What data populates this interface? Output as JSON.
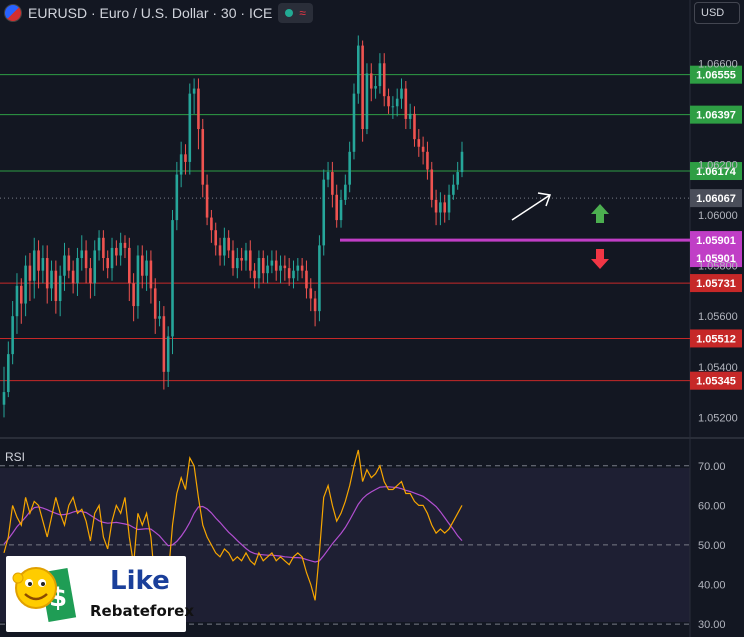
{
  "header": {
    "title": "EURUSD · Euro / U.S. Dollar · 30 · ICE",
    "currency": "USD",
    "status_icon": "green-dot-icon",
    "wave_icon": "≈"
  },
  "rsi_label": "RSI",
  "logo": {
    "line1": "Like",
    "line2": "Rebateforex"
  },
  "colors": {
    "up": "#26a69a",
    "down": "#ef5350",
    "green_level": "#2e7d32",
    "red_level": "#b71c1c",
    "purple": "#c03ec6",
    "rsi": "#f7a600",
    "rsi_ma": "#b24fd1",
    "current": "#4a4e5a"
  },
  "chart_data": [
    {
      "type": "candlestick",
      "title": "EURUSD · Euro / U.S. Dollar · 30 · ICE",
      "ylim": [
        1.0515,
        1.067
      ],
      "y_ticks": [
        "1.06600",
        "1.06200",
        "1.06000",
        "1.05800",
        "1.05600",
        "1.05400",
        "1.05200"
      ],
      "current_price": "1.06067",
      "resistance_levels": [
        "1.06555",
        "1.06397",
        "1.06174"
      ],
      "support_levels": [
        "1.05731",
        "1.05512",
        "1.05345"
      ],
      "pivot_level": "1.05901",
      "pivot_label_2": "1.05901",
      "closes": [
        1.053,
        1.0545,
        1.056,
        1.0572,
        1.0565,
        1.058,
        1.0574,
        1.0586,
        1.0578,
        1.0583,
        1.0571,
        1.0578,
        1.0566,
        1.0576,
        1.0584,
        1.0578,
        1.0573,
        1.0583,
        1.0586,
        1.0579,
        1.0573,
        1.0586,
        1.0591,
        1.0583,
        1.0579,
        1.0587,
        1.0584,
        1.0589,
        1.0587,
        1.0573,
        1.0564,
        1.0584,
        1.0576,
        1.0582,
        1.0571,
        1.0559,
        1.056,
        1.0538,
        1.0552,
        1.0598,
        1.0616,
        1.0624,
        1.0621,
        1.0648,
        1.065,
        1.0634,
        1.0612,
        1.0599,
        1.0594,
        1.0588,
        1.0584,
        1.0591,
        1.0586,
        1.0579,
        1.0583,
        1.0582,
        1.0586,
        1.0578,
        1.0575,
        1.0583,
        1.0577,
        1.058,
        1.0582,
        1.0578,
        1.058,
        1.0579,
        1.0575,
        1.0578,
        1.058,
        1.0578,
        1.0571,
        1.0567,
        1.0562,
        1.0588,
        1.0614,
        1.0617,
        1.0608,
        1.0598,
        1.0606,
        1.0612,
        1.0625,
        1.0648,
        1.0667,
        1.0634,
        1.0656,
        1.065,
        1.0651,
        1.066,
        1.0647,
        1.0643,
        1.0643,
        1.0646,
        1.065,
        1.0638,
        1.064,
        1.063,
        1.0627,
        1.0625,
        1.0618,
        1.0606,
        1.0601,
        1.0605,
        1.0601,
        1.0608,
        1.0612,
        1.0617,
        1.0625
      ],
      "lows": [
        1.052,
        1.0528,
        1.0541,
        1.0553,
        1.0557,
        1.056,
        1.0566,
        1.0567,
        1.0571,
        1.0573,
        1.0565,
        1.0566,
        1.0561,
        1.056,
        1.057,
        1.0575,
        1.0569,
        1.0568,
        1.0578,
        1.0573,
        1.0567,
        1.0568,
        1.0582,
        1.0578,
        1.0575,
        1.0574,
        1.058,
        1.058,
        1.0583,
        1.0566,
        1.0558,
        1.0559,
        1.0571,
        1.057,
        1.0565,
        1.0553,
        1.0556,
        1.0531,
        1.0532,
        1.0545,
        1.0594,
        1.0611,
        1.0616,
        1.0616,
        1.064,
        1.0626,
        1.0607,
        1.0596,
        1.0589,
        1.0584,
        1.058,
        1.058,
        1.0583,
        1.0576,
        1.0575,
        1.0578,
        1.0578,
        1.0575,
        1.0571,
        1.0571,
        1.0573,
        1.0573,
        1.0577,
        1.0574,
        1.0573,
        1.0574,
        1.0572,
        1.0571,
        1.0574,
        1.0575,
        1.0567,
        1.0562,
        1.0556,
        1.0558,
        1.0584,
        1.0611,
        1.0603,
        1.0595,
        1.0595,
        1.0604,
        1.0609,
        1.0622,
        1.0644,
        1.0629,
        1.0632,
        1.0645,
        1.0646,
        1.0648,
        1.0643,
        1.064,
        1.0638,
        1.0639,
        1.0642,
        1.0634,
        1.0634,
        1.0627,
        1.0623,
        1.062,
        1.0614,
        1.0603,
        1.0596,
        1.0596,
        1.0597,
        1.0598,
        1.0606,
        1.061,
        1.0615
      ],
      "highs": [
        1.054,
        1.055,
        1.0566,
        1.0577,
        1.0575,
        1.0584,
        1.0585,
        1.0591,
        1.059,
        1.0588,
        1.0588,
        1.0582,
        1.0582,
        1.058,
        1.0589,
        1.0587,
        1.0582,
        1.0587,
        1.0592,
        1.059,
        1.0583,
        1.059,
        1.0594,
        1.0594,
        1.0586,
        1.0591,
        1.059,
        1.0593,
        1.0592,
        1.0591,
        1.0577,
        1.0588,
        1.0588,
        1.0586,
        1.0586,
        1.0575,
        1.0566,
        1.0564,
        1.0556,
        1.0602,
        1.0621,
        1.0629,
        1.0628,
        1.0652,
        1.0654,
        1.0654,
        1.0638,
        1.0616,
        1.0602,
        1.0597,
        1.0591,
        1.0595,
        1.0594,
        1.059,
        1.0587,
        1.0587,
        1.0589,
        1.059,
        1.0581,
        1.0586,
        1.0586,
        1.0584,
        1.0586,
        1.0586,
        1.0584,
        1.0584,
        1.0583,
        1.0582,
        1.0583,
        1.0583,
        1.0582,
        1.0575,
        1.057,
        1.0592,
        1.0618,
        1.0621,
        1.0621,
        1.0612,
        1.061,
        1.0616,
        1.0629,
        1.0652,
        1.0671,
        1.0669,
        1.066,
        1.066,
        1.0655,
        1.0664,
        1.0664,
        1.065,
        1.0647,
        1.065,
        1.0654,
        1.0653,
        1.0644,
        1.0643,
        1.0634,
        1.0631,
        1.0629,
        1.0621,
        1.061,
        1.0609,
        1.0608,
        1.0612,
        1.0616,
        1.0621,
        1.0629
      ]
    },
    {
      "type": "line",
      "title": "RSI",
      "ylim": [
        28,
        75
      ],
      "y_ticks": [
        "70.00",
        "60.00",
        "50.00",
        "40.00",
        "30.00"
      ],
      "dashed_levels": [
        70,
        50,
        30
      ],
      "series": [
        {
          "values": [
            48,
            52,
            60,
            57,
            55,
            62,
            58,
            61,
            60,
            56,
            52,
            57,
            62,
            58,
            55,
            60,
            62,
            58,
            59,
            56,
            51,
            58,
            60,
            52,
            49,
            56,
            60,
            58,
            62,
            52,
            45,
            58,
            55,
            58,
            52,
            40,
            44,
            37,
            42,
            55,
            63,
            67,
            64,
            72,
            70,
            62,
            55,
            52,
            50,
            48,
            47,
            49,
            48,
            46,
            47,
            46,
            48,
            46,
            45,
            48,
            46,
            47,
            48,
            46,
            47,
            46,
            45,
            47,
            48,
            47,
            43,
            40,
            36,
            48,
            62,
            65,
            60,
            56,
            58,
            61,
            65,
            70,
            74,
            66,
            69,
            67,
            68,
            70,
            66,
            64,
            64,
            65,
            66,
            63,
            63,
            61,
            60,
            60,
            58,
            55,
            53,
            54,
            53,
            54,
            56,
            58,
            60
          ]
        },
        {
          "values": [
            50.2,
            51.5,
            53.0,
            54.6,
            55.8,
            57.0,
            58.4,
            59.4,
            59.6,
            59.3,
            58.9,
            58.4,
            58.0,
            57.6,
            57.7,
            57.9,
            58.3,
            58.6,
            58.4,
            58.2,
            57.5,
            56.8,
            56.1,
            55.7,
            55.5,
            55.6,
            55.7,
            55.5,
            55.3,
            55.0,
            54.4,
            53.9,
            54.0,
            54.1,
            54.0,
            53.2,
            52.3,
            51.0,
            49.8,
            50.0,
            50.9,
            52.2,
            53.8,
            55.7,
            58.0,
            59.6,
            59.7,
            59.1,
            58.1,
            56.8,
            55.7,
            54.4,
            53.2,
            52.2,
            51.1,
            50.1,
            49.1,
            48.3,
            47.8,
            47.6,
            47.5,
            47.4,
            47.4,
            47.3,
            47.2,
            47.0,
            46.9,
            46.8,
            46.8,
            46.7,
            46.3,
            46.0,
            45.7,
            46.0,
            47.3,
            48.8,
            50.3,
            51.6,
            52.9,
            54.4,
            56.3,
            58.3,
            60.3,
            61.7,
            62.7,
            63.4,
            64.0,
            64.6,
            64.7,
            64.7,
            64.6,
            64.5,
            64.2,
            63.8,
            63.5,
            63.1,
            62.7,
            62.3,
            61.5,
            60.6,
            59.7,
            58.4,
            56.9,
            55.4,
            53.9,
            52.3,
            51.1
          ]
        }
      ]
    }
  ]
}
